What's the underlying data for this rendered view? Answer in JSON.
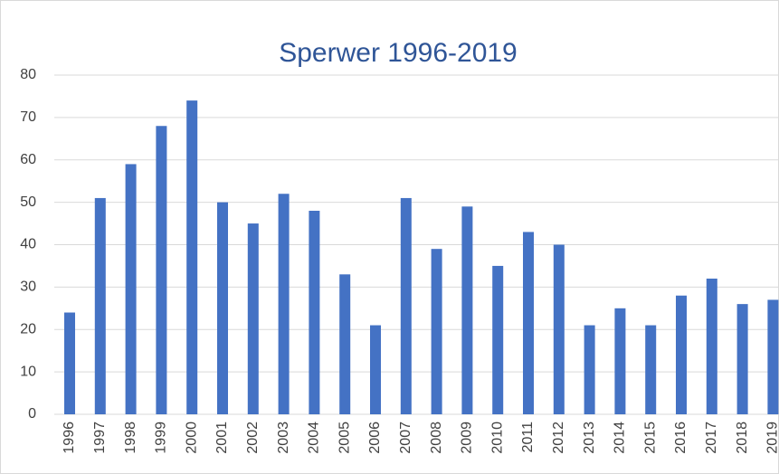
{
  "chart_data": {
    "type": "bar",
    "title": "Sperwer 1996-2019",
    "categories": [
      "1996",
      "1997",
      "1998",
      "1999",
      "2000",
      "2001",
      "2002",
      "2003",
      "2004",
      "2005",
      "2006",
      "2007",
      "2008",
      "2009",
      "2010",
      "2011",
      "2012",
      "2013",
      "2014",
      "2015",
      "2016",
      "2017",
      "2018",
      "2019"
    ],
    "values": [
      24,
      51,
      59,
      68,
      74,
      50,
      45,
      52,
      48,
      33,
      21,
      51,
      39,
      49,
      35,
      43,
      40,
      21,
      25,
      21,
      28,
      32,
      26,
      27
    ],
    "color": "#4472c4",
    "ylim": [
      0,
      80
    ],
    "yticks": [
      0,
      10,
      20,
      30,
      40,
      50,
      60,
      70,
      80
    ],
    "grid": true
  }
}
